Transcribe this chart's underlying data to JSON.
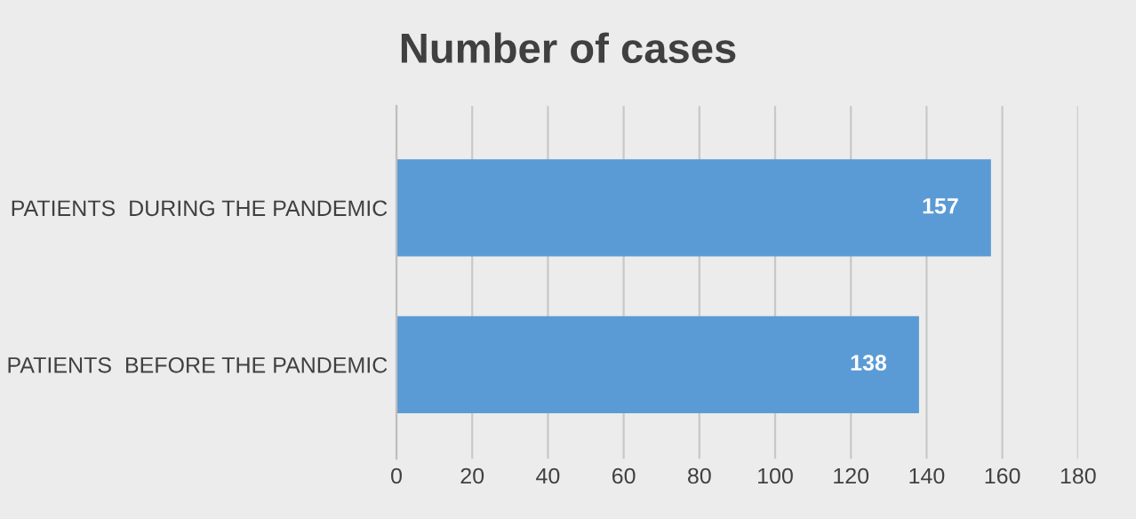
{
  "chart_data": {
    "type": "bar",
    "orientation": "horizontal",
    "title": "Number of cases",
    "categories": [
      "PATIENTS  DURING THE PANDEMIC",
      "PATIENTS  BEFORE THE PANDEMIC"
    ],
    "values": [
      157,
      138
    ],
    "color": "#5b9bd5",
    "xlim": [
      0,
      180
    ],
    "xticks": [
      0,
      20,
      40,
      60,
      80,
      100,
      120,
      140,
      160,
      180
    ],
    "grid": "x",
    "data_labels": true,
    "legend": false
  }
}
